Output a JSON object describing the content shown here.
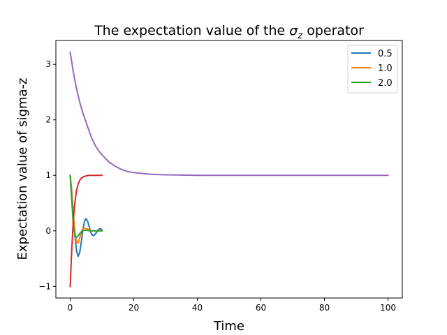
{
  "chart_data": {
    "type": "line",
    "title": {
      "prefix": "The expectation value of the ",
      "symbol": "σ",
      "subscript": "z",
      "suffix": " operator"
    },
    "xlabel": "Time",
    "ylabel": "Expectation value of sigma-z",
    "xlim": [
      -4.5,
      104.5
    ],
    "ylim": [
      -1.21,
      3.43
    ],
    "xticks": [
      0,
      20,
      40,
      60,
      80,
      100
    ],
    "yticks": [
      -1,
      0,
      1,
      2,
      3
    ],
    "x_tick_labels": [
      "0",
      "20",
      "40",
      "60",
      "80",
      "100"
    ],
    "y_tick_labels": [
      "−1",
      "0",
      "1",
      "2",
      "3"
    ],
    "grid": false,
    "legend_position": "top-right",
    "series": [
      {
        "name": "0.5",
        "color": "#1f77b4",
        "x": [
          0,
          0.5,
          1,
          1.5,
          2,
          2.5,
          3,
          3.5,
          4,
          4.5,
          5,
          5.5,
          6,
          6.5,
          7,
          7.5,
          8,
          8.5,
          9,
          9.5,
          10
        ],
        "y": [
          1,
          0.72,
          0.31,
          -0.09,
          -0.36,
          -0.46,
          -0.39,
          -0.2,
          0.02,
          0.17,
          0.22,
          0.17,
          0.07,
          -0.03,
          -0.08,
          -0.08,
          -0.05,
          -0.01,
          0.03,
          0.04,
          0.02
        ]
      },
      {
        "name": "1.0",
        "color": "#ff7f0e",
        "x": [
          0,
          0.5,
          1,
          1.5,
          2,
          2.5,
          3,
          3.5,
          4,
          4.5,
          5,
          5.5,
          6,
          6.5,
          7,
          7.5,
          8,
          8.5,
          9,
          9.5,
          10
        ],
        "y": [
          1,
          0.68,
          0.29,
          -0.04,
          -0.21,
          -0.22,
          -0.13,
          -0.02,
          0.04,
          0.05,
          0.04,
          0.03,
          0.02,
          0.01,
          0,
          0,
          0,
          0,
          0,
          0,
          0
        ]
      },
      {
        "name": "2.0",
        "color": "#2ca02c",
        "x": [
          0,
          0.5,
          1,
          1.5,
          2,
          2.5,
          3,
          3.5,
          4,
          4.5,
          5,
          5.5,
          6,
          6.5,
          7,
          7.5,
          8,
          8.5,
          9,
          9.5,
          10
        ],
        "y": [
          1,
          0.55,
          0.1,
          -0.09,
          -0.12,
          -0.09,
          -0.05,
          -0.02,
          0,
          0.01,
          0.01,
          0.01,
          0,
          0,
          0,
          0,
          0,
          0,
          0,
          0,
          0
        ]
      },
      {
        "color": "#d62728",
        "x": [
          0,
          0.5,
          1,
          1.5,
          2,
          2.5,
          3,
          3.5,
          4,
          5,
          6,
          7,
          8,
          9,
          10
        ],
        "y": [
          -1,
          -0.33,
          0.2,
          0.52,
          0.73,
          0.84,
          0.91,
          0.95,
          0.97,
          0.99,
          1,
          1,
          1,
          1,
          1
        ]
      },
      {
        "color": "#9467bd",
        "x": [
          0,
          1,
          2,
          3,
          4,
          5,
          6,
          7,
          8,
          9,
          10,
          12,
          14,
          16,
          18,
          20,
          25,
          30,
          40,
          50,
          60,
          70,
          80,
          90,
          100
        ],
        "y": [
          3.22,
          2.86,
          2.56,
          2.32,
          2.12,
          1.96,
          1.79,
          1.64,
          1.53,
          1.44,
          1.37,
          1.25,
          1.17,
          1.11,
          1.07,
          1.05,
          1.02,
          1.01,
          1.0,
          1.0,
          1.0,
          1.0,
          1.0,
          1.0,
          1.0
        ]
      }
    ]
  }
}
